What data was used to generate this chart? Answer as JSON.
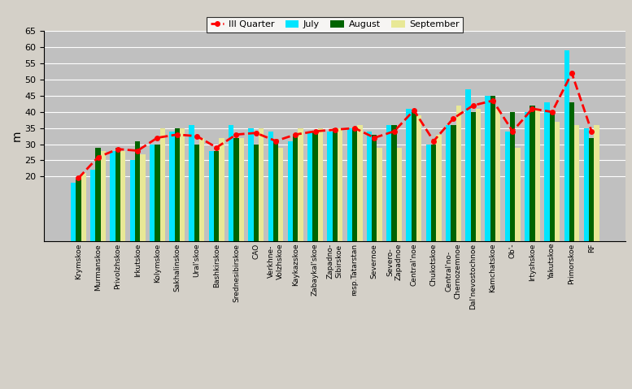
{
  "categories": [
    "Krymskoe",
    "Murmanskoe",
    "Privolzhskoe",
    "Irkutskoe",
    "Kolymskoe",
    "Sakhalinskoe",
    "Ural'skoe",
    "Bashkirskoe",
    "Srednesibirskoe",
    "CAO",
    "Verkhne-\nVolzhskoe",
    "Kaykazskoe",
    "Zabaykal'skoe",
    "Zapadno-\nSibirskoe",
    "resp.Tatarstan",
    "Severnoe",
    "Severo-\nZapadnoe",
    "Central'noe",
    "Chukotskoe",
    "Central'no-\nChernozemnoe",
    "Dal'nevostochnoe",
    "Kamchatskoe",
    "Ob'-",
    "Irtyshskoe",
    "Yakutskoe",
    "Primorskoe",
    "RF"
  ],
  "july": [
    18,
    22,
    28,
    25,
    30,
    34,
    36,
    28,
    36,
    35,
    34,
    31,
    34,
    34,
    35,
    34,
    36,
    41,
    30,
    36,
    47,
    45,
    34,
    40,
    43,
    59,
    35
  ],
  "august": [
    19,
    29,
    29,
    31,
    30,
    35,
    30,
    28,
    32,
    30,
    31,
    33,
    34,
    35,
    35,
    33,
    36,
    40,
    30,
    36,
    40,
    45,
    40,
    42,
    40,
    43,
    32
  ],
  "september": [
    21,
    28,
    28,
    27,
    35,
    35,
    32,
    32,
    32,
    35,
    29,
    35,
    35,
    35,
    36,
    29,
    29,
    39,
    33,
    42,
    41,
    41,
    29,
    41,
    37,
    36,
    36
  ],
  "iii_quarter": [
    19.5,
    26,
    28.5,
    28,
    32,
    33,
    32.5,
    29,
    33,
    33.5,
    31,
    33,
    34,
    34.5,
    35,
    32,
    34,
    40.5,
    31,
    38,
    42,
    43.5,
    34,
    41,
    40,
    52,
    34
  ],
  "bar_color_july": "#00e5ff",
  "bar_color_august": "#006400",
  "bar_color_september": "#e8e896",
  "line_color": "#ff0000",
  "background_color": "#c0c0c0",
  "fig_bg_color": "#d4d0c8",
  "ylabel": "m",
  "ylim": [
    0,
    65
  ],
  "yticks": [
    20,
    25,
    30,
    35,
    40,
    45,
    50,
    55,
    60,
    65
  ]
}
